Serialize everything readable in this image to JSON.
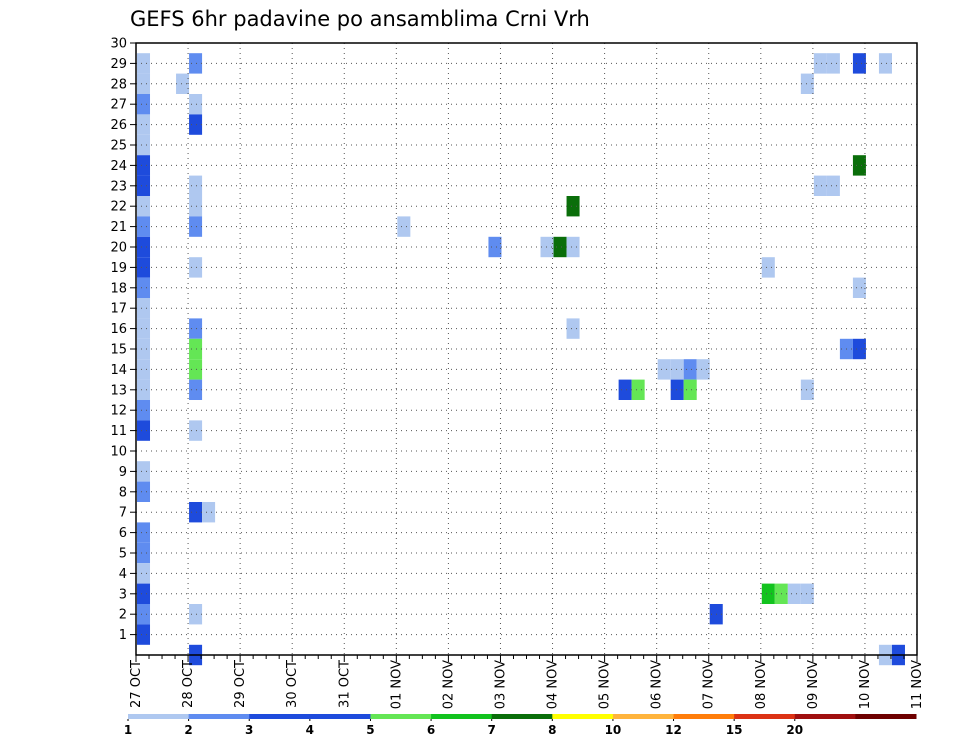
{
  "chart_data": {
    "type": "heatmap",
    "title": "GEFS 6hr padavine po ansamblima Crni Vrh",
    "ylim": [
      0,
      30
    ],
    "yticks": [
      1,
      2,
      3,
      4,
      5,
      6,
      7,
      8,
      9,
      10,
      11,
      12,
      13,
      14,
      15,
      16,
      17,
      18,
      19,
      20,
      21,
      22,
      23,
      24,
      25,
      26,
      27,
      28,
      29,
      30
    ],
    "xtick_labels": [
      "27 OCT",
      "28 OCT",
      "29 OCT",
      "30 OCT",
      "31 OCT",
      "01 NOV",
      "02 NOV",
      "03 NOV",
      "04 NOV",
      "05 NOV",
      "06 NOV",
      "07 NOV",
      "08 NOV",
      "09 NOV",
      "10 NOV",
      "11 NOV"
    ],
    "time_step_hours": 6,
    "grid": true,
    "legend": {
      "position": "bottom",
      "labels": [
        "1",
        "2",
        "3",
        "4",
        "5",
        "6",
        "7",
        "8",
        "10",
        "12",
        "15",
        "20"
      ],
      "colors": [
        "#afc8f0",
        "#5f8cf0",
        "#1e4bdc",
        "#1e4bdc",
        "#64e655",
        "#12c31e",
        "#0a6e0a",
        "#ffff00",
        "#ffb43c",
        "#ff7d0a",
        "#dc3214",
        "#a00f0f",
        "#6e0000"
      ]
    },
    "cells": [
      {
        "t": 1,
        "m": 29,
        "c": 1
      },
      {
        "t": 1,
        "m": 28,
        "c": 1
      },
      {
        "t": 1,
        "m": 27,
        "c": 2
      },
      {
        "t": 1,
        "m": 26,
        "c": 1
      },
      {
        "t": 1,
        "m": 25,
        "c": 1
      },
      {
        "t": 1,
        "m": 24,
        "c": 3
      },
      {
        "t": 1,
        "m": 23,
        "c": 4
      },
      {
        "t": 1,
        "m": 22,
        "c": 1
      },
      {
        "t": 1,
        "m": 21,
        "c": 2
      },
      {
        "t": 1,
        "m": 20,
        "c": 4
      },
      {
        "t": 1,
        "m": 19,
        "c": 3
      },
      {
        "t": 1,
        "m": 18,
        "c": 2
      },
      {
        "t": 1,
        "m": 17,
        "c": 1
      },
      {
        "t": 1,
        "m": 16,
        "c": 1
      },
      {
        "t": 1,
        "m": 15,
        "c": 1
      },
      {
        "t": 1,
        "m": 14,
        "c": 1
      },
      {
        "t": 1,
        "m": 13,
        "c": 1
      },
      {
        "t": 1,
        "m": 12,
        "c": 2
      },
      {
        "t": 1,
        "m": 11,
        "c": 4
      },
      {
        "t": 1,
        "m": 9,
        "c": 1
      },
      {
        "t": 1,
        "m": 8,
        "c": 2
      },
      {
        "t": 1,
        "m": 6,
        "c": 2
      },
      {
        "t": 1,
        "m": 5,
        "c": 2
      },
      {
        "t": 1,
        "m": 4,
        "c": 1
      },
      {
        "t": 1,
        "m": 3,
        "c": 3
      },
      {
        "t": 1,
        "m": 2,
        "c": 2
      },
      {
        "t": 1,
        "m": 1,
        "c": 3
      },
      {
        "t": 4,
        "m": 28,
        "c": 1
      },
      {
        "t": 5,
        "m": 29,
        "c": 2
      },
      {
        "t": 5,
        "m": 27,
        "c": 1
      },
      {
        "t": 5,
        "m": 26,
        "c": 4
      },
      {
        "t": 5,
        "m": 23,
        "c": 1
      },
      {
        "t": 5,
        "m": 22,
        "c": 1
      },
      {
        "t": 5,
        "m": 21,
        "c": 2
      },
      {
        "t": 5,
        "m": 19,
        "c": 1
      },
      {
        "t": 5,
        "m": 16,
        "c": 2
      },
      {
        "t": 5,
        "m": 15,
        "c": 5
      },
      {
        "t": 5,
        "m": 14,
        "c": 5
      },
      {
        "t": 5,
        "m": 13,
        "c": 2
      },
      {
        "t": 5,
        "m": 11,
        "c": 1
      },
      {
        "t": 5,
        "m": 7,
        "c": 4
      },
      {
        "t": 5,
        "m": 2,
        "c": 1
      },
      {
        "t": 5,
        "m": 0,
        "c": 3
      },
      {
        "t": 6,
        "m": 7,
        "c": 1
      },
      {
        "t": 21,
        "m": 21,
        "c": 1
      },
      {
        "t": 28,
        "m": 20,
        "c": 2
      },
      {
        "t": 32,
        "m": 20,
        "c": 1
      },
      {
        "t": 33,
        "m": 20,
        "c": 7
      },
      {
        "t": 34,
        "m": 20,
        "c": 1
      },
      {
        "t": 34,
        "m": 22,
        "c": 7
      },
      {
        "t": 34,
        "m": 16,
        "c": 1
      },
      {
        "t": 38,
        "m": 13,
        "c": 3
      },
      {
        "t": 39,
        "m": 13,
        "c": 5
      },
      {
        "t": 41,
        "m": 14,
        "c": 1
      },
      {
        "t": 42,
        "m": 14,
        "c": 1
      },
      {
        "t": 43,
        "m": 14,
        "c": 2
      },
      {
        "t": 44,
        "m": 14,
        "c": 1
      },
      {
        "t": 42,
        "m": 13,
        "c": 3
      },
      {
        "t": 43,
        "m": 13,
        "c": 5
      },
      {
        "t": 45,
        "m": 2,
        "c": 3
      },
      {
        "t": 49,
        "m": 19,
        "c": 1
      },
      {
        "t": 49,
        "m": 3,
        "c": 6
      },
      {
        "t": 50,
        "m": 3,
        "c": 5
      },
      {
        "t": 51,
        "m": 3,
        "c": 1
      },
      {
        "t": 52,
        "m": 3,
        "c": 1
      },
      {
        "t": 52,
        "m": 28,
        "c": 1
      },
      {
        "t": 52,
        "m": 13,
        "c": 1
      },
      {
        "t": 53,
        "m": 29,
        "c": 1
      },
      {
        "t": 54,
        "m": 29,
        "c": 1
      },
      {
        "t": 53,
        "m": 23,
        "c": 1
      },
      {
        "t": 54,
        "m": 23,
        "c": 1
      },
      {
        "t": 55,
        "m": 15,
        "c": 2
      },
      {
        "t": 56,
        "m": 15,
        "c": 3
      },
      {
        "t": 56,
        "m": 29,
        "c": 3
      },
      {
        "t": 56,
        "m": 24,
        "c": 7
      },
      {
        "t": 56,
        "m": 18,
        "c": 1
      },
      {
        "t": 58,
        "m": 29,
        "c": 1
      },
      {
        "t": 58,
        "m": 0,
        "c": 1
      },
      {
        "t": 59,
        "m": 0,
        "c": 3
      }
    ]
  }
}
